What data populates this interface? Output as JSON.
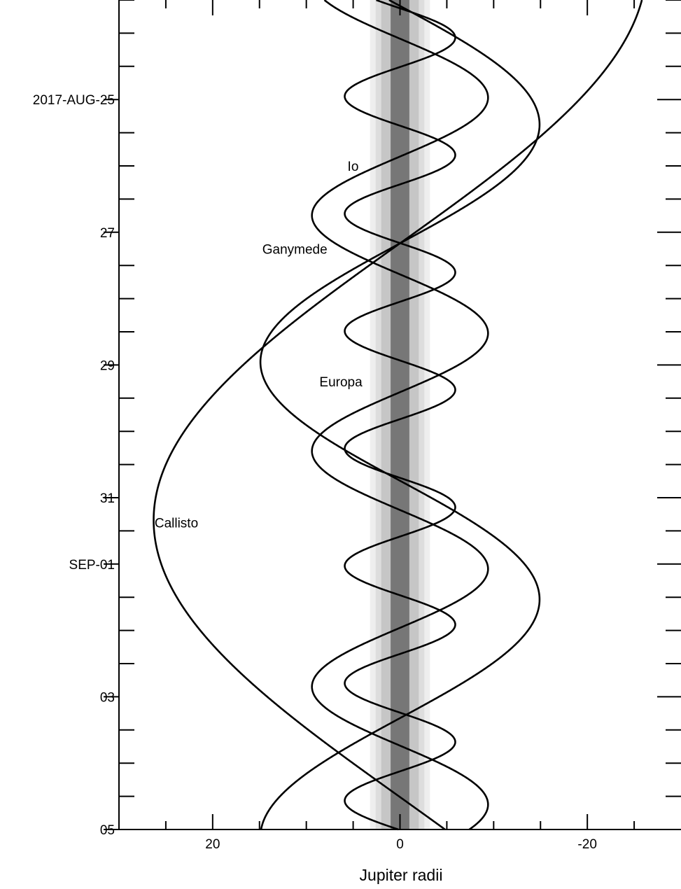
{
  "chart_data": {
    "type": "line",
    "title": "",
    "xlabel": "Jupiter radii",
    "ylabel": "",
    "xlim": [
      30,
      -30
    ],
    "x_reversed": true,
    "ylim": [
      "2017-08-23T12:00",
      "2017-09-05T00:00"
    ],
    "y_reversed": true,
    "grid": false,
    "x_ticks": [
      {
        "value": 20,
        "label": "20"
      },
      {
        "value": 0,
        "label": "0"
      },
      {
        "value": -20,
        "label": "-20"
      }
    ],
    "x_minor_ticks": [
      25,
      15,
      10,
      5,
      -5,
      -10,
      -15,
      -25
    ],
    "y_ticks": [
      {
        "value": "2017-08-25T00:00",
        "label": "2017-AUG-25"
      },
      {
        "value": "2017-08-27T00:00",
        "label": "27"
      },
      {
        "value": "2017-08-29T00:00",
        "label": "29"
      },
      {
        "value": "2017-08-31T00:00",
        "label": "31"
      },
      {
        "value": "2017-09-01T00:00",
        "label": "SEP-01"
      },
      {
        "value": "2017-09-03T00:00",
        "label": "03"
      },
      {
        "value": "2017-09-05T00:00",
        "label": "05"
      }
    ],
    "y_minor_ticks_hours": 12,
    "planet_band": {
      "color_core": "#777777",
      "bands": [
        {
          "half_width_rj": 3.2,
          "color": "#eeeeee"
        },
        {
          "half_width_rj": 2.6,
          "color": "#dddddd"
        },
        {
          "half_width_rj": 2.0,
          "color": "#c6c6c6"
        },
        {
          "half_width_rj": 1.0,
          "color": "#777777"
        }
      ]
    },
    "series": [
      {
        "name": "Io",
        "label_at": {
          "x": 5.6,
          "y": "2017-08-26T00:00"
        },
        "amplitude_rj": 5.9,
        "period_days": 1.769,
        "zero_crossing": "2017-08-23T15:00",
        "direction": -1,
        "color": "#000000"
      },
      {
        "name": "Europa",
        "label_at": {
          "x": 8.6,
          "y": "2017-08-29T06:00"
        },
        "amplitude_rj": 9.4,
        "period_days": 3.551,
        "zero_crossing": "2017-08-24T02:00",
        "direction": -1,
        "color": "#000000"
      },
      {
        "name": "Ganymede",
        "label_at": {
          "x": 14.7,
          "y": "2017-08-27T06:00"
        },
        "amplitude_rj": 14.9,
        "period_days": 7.155,
        "zero_crossing": "2017-08-27T04:00",
        "direction": 1,
        "color": "#000000"
      },
      {
        "name": "Callisto",
        "label_at": {
          "x": 26.2,
          "y": "2017-08-31T09:00"
        },
        "amplitude_rj": 26.3,
        "period_days": 16.689,
        "zero_crossing": "2017-08-27T04:00",
        "direction": 1,
        "color": "#000000"
      }
    ]
  }
}
